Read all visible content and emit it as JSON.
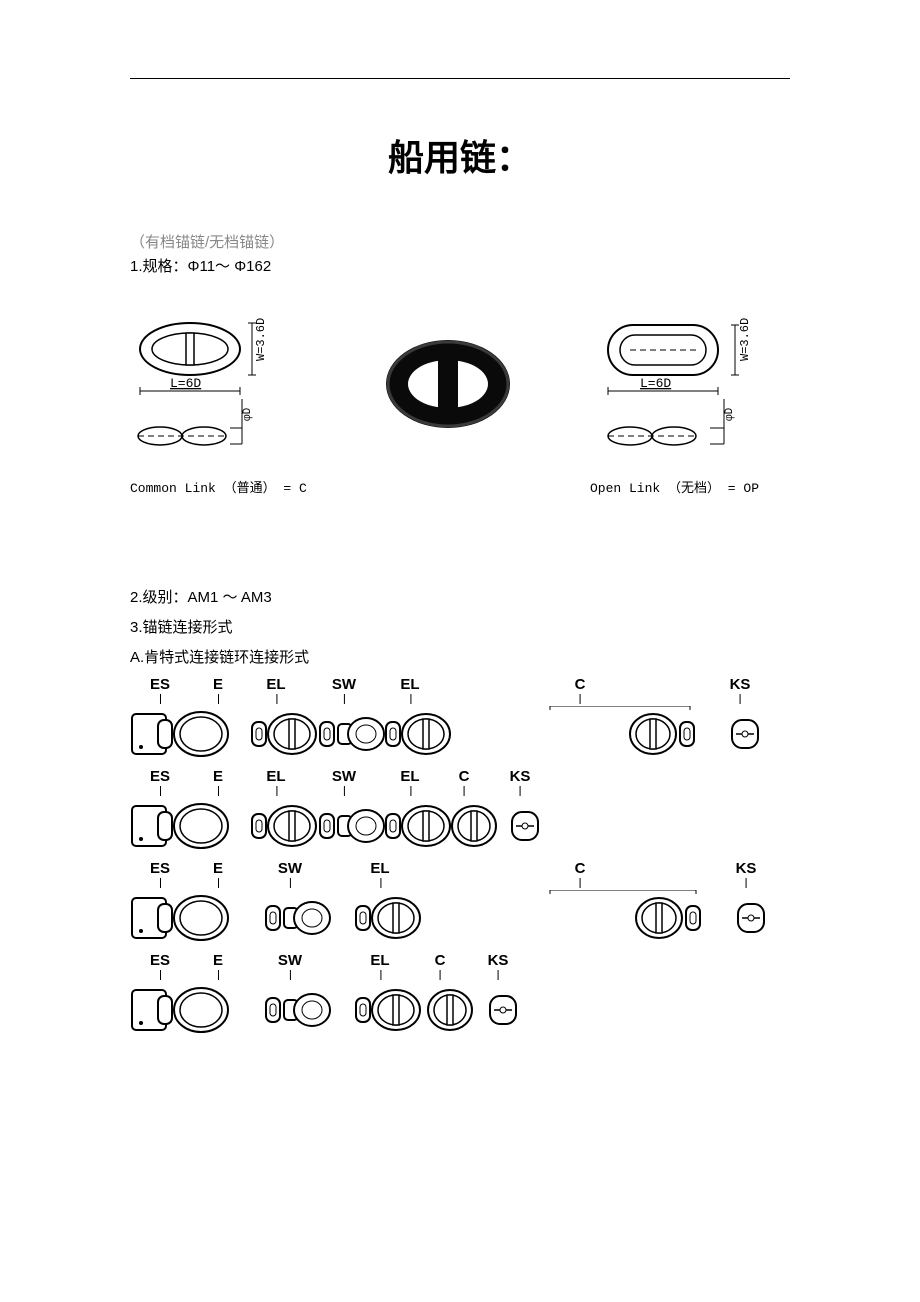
{
  "title": "船用链：",
  "intro_paren": "（有档锚链/无档锚链）",
  "spec_line": "1.规格：Φ11～ Φ162",
  "link_diagrams": {
    "common": {
      "L_label": "L=6D",
      "W_label": "W=3.6D",
      "D_label": "φD",
      "caption": "Common Link （普通） = C"
    },
    "open": {
      "L_label": "L=6D",
      "W_label": "W=3.6D",
      "D_label": "φD",
      "caption": "Open Link （无档） = OP"
    }
  },
  "grade_line": "2.级别：AM1 ～ AM3",
  "conn_line": "3.锚链连接形式",
  "kent_line": "A.肯特式连接链环连接形式",
  "chain_rows": [
    {
      "labels": [
        "ES",
        "E",
        "EL",
        "SW",
        "EL",
        "C",
        "KS"
      ],
      "pos": [
        30,
        88,
        146,
        214,
        280,
        450,
        610
      ],
      "long_c": true
    },
    {
      "labels": [
        "ES",
        "E",
        "EL",
        "SW",
        "EL",
        "C",
        "KS"
      ],
      "pos": [
        30,
        88,
        146,
        214,
        280,
        334,
        390
      ],
      "long_c": false
    },
    {
      "labels": [
        "ES",
        "E",
        "SW",
        "EL",
        "C",
        "KS"
      ],
      "pos": [
        30,
        88,
        160,
        250,
        450,
        616
      ],
      "long_c": true
    },
    {
      "labels": [
        "ES",
        "E",
        "SW",
        "EL",
        "C",
        "KS"
      ],
      "pos": [
        30,
        88,
        160,
        250,
        310,
        368
      ],
      "long_c": false
    }
  ]
}
